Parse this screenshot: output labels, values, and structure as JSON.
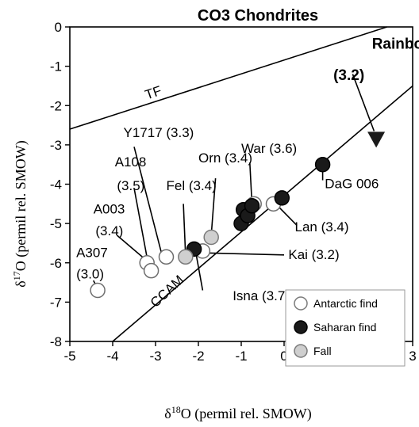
{
  "chart_data": {
    "type": "scatter",
    "title": "CO3 Chondrites",
    "xlabel": {
      "symbol": "δ",
      "sup": "18",
      "rest": "O (permil rel. SMOW)"
    },
    "ylabel": {
      "symbol": "δ",
      "sup": "17",
      "rest": "O (permil rel. SMOW)"
    },
    "xlim": [
      -5,
      3
    ],
    "ylim": [
      -8,
      0
    ],
    "xticks": [
      "-5",
      "-4",
      "-3",
      "-2",
      "-1",
      "0",
      "1",
      "2",
      "3"
    ],
    "yticks": [
      "0",
      "-1",
      "-2",
      "-3",
      "-4",
      "-5",
      "-6",
      "-7",
      "-8"
    ],
    "grid": false,
    "legend_position": "bottom-right",
    "colors": {
      "antarctic": "#ffffff",
      "saharan": "#1a1a1a",
      "fall": "#cfcfcf",
      "rainbow": "#1a1a1a",
      "line": "#000000"
    },
    "lines": [
      {
        "name": "TF",
        "x": [
          -5.0,
          2.4
        ],
        "y": [
          -2.6,
          0.0
        ]
      },
      {
        "name": "CCAM",
        "x": [
          -4.0,
          3.0
        ],
        "y": [
          -8.0,
          -1.5
        ]
      }
    ],
    "legend": [
      {
        "label": "Antarctic find",
        "key": "antarctic"
      },
      {
        "label": "Saharan find",
        "key": "saharan"
      },
      {
        "label": "Fall",
        "key": "fall"
      }
    ],
    "series": [
      {
        "name": "Antarctic find",
        "points": [
          {
            "x": -4.35,
            "y": -6.7
          },
          {
            "x": -3.2,
            "y": -6.0
          },
          {
            "x": -3.1,
            "y": -6.2
          },
          {
            "x": -2.75,
            "y": -5.85
          },
          {
            "x": -1.9,
            "y": -5.7
          },
          {
            "x": -0.7,
            "y": -4.5
          },
          {
            "x": -0.25,
            "y": -4.5
          }
        ]
      },
      {
        "name": "Saharan find",
        "points": [
          {
            "x": -2.1,
            "y": -5.65
          },
          {
            "x": -1.0,
            "y": -5.0
          },
          {
            "x": -0.95,
            "y": -4.65
          },
          {
            "x": -0.85,
            "y": -4.8
          },
          {
            "x": -0.75,
            "y": -4.55
          },
          {
            "x": -0.05,
            "y": -4.35
          },
          {
            "x": 0.9,
            "y": -3.5
          }
        ]
      },
      {
        "name": "Fall",
        "points": [
          {
            "x": -2.3,
            "y": -5.85
          },
          {
            "x": -1.7,
            "y": -5.35
          }
        ]
      },
      {
        "name": "Rainbow",
        "points": [
          {
            "x": 2.15,
            "y": -2.85
          }
        ]
      }
    ],
    "annotations": [
      {
        "text": "TF",
        "x": -3.2,
        "y": -1.85,
        "rotate": -19,
        "pointer": null
      },
      {
        "text": "CCAM",
        "x": -3.0,
        "y": -7.15,
        "rotate": -43,
        "pointer": null
      },
      {
        "text": "Rainbow",
        "x": 2.05,
        "y": -0.55,
        "bold": true,
        "pointer": null
      },
      {
        "text": "(3.2)",
        "x": 1.15,
        "y": -1.35,
        "bold": true,
        "pointer": {
          "from": [
            1.6,
            -1.2
          ],
          "to": [
            2.1,
            -2.65
          ]
        }
      },
      {
        "text": "War (3.6)",
        "x": -1.0,
        "y": -3.2,
        "pointer": {
          "from": [
            -0.8,
            -3.45
          ],
          "to": [
            -0.75,
            -4.5
          ]
        }
      },
      {
        "text": "Y1717 (3.3)",
        "x": -3.75,
        "y": -2.8,
        "pointer": {
          "from": [
            -3.5,
            -3.05
          ],
          "to": [
            -2.85,
            -5.8
          ]
        }
      },
      {
        "text": "Orn (3.4)",
        "x": -2.0,
        "y": -3.45,
        "pointer": {
          "from": [
            -1.6,
            -3.85
          ],
          "to": [
            -1.7,
            -5.3
          ]
        }
      },
      {
        "text": "Fel (3.4)",
        "x": -2.75,
        "y": -4.15,
        "pointer": {
          "from": [
            -2.35,
            -4.5
          ],
          "to": [
            -2.3,
            -5.8
          ]
        }
      },
      {
        "text": "A108",
        "x": -3.95,
        "y": -3.55
      },
      {
        "text": "(3.5)",
        "x": -3.9,
        "y": -4.15,
        "pointer": {
          "from": [
            -3.5,
            -4.1
          ],
          "to": [
            -3.15,
            -6.15
          ]
        }
      },
      {
        "text": "A003",
        "x": -4.45,
        "y": -4.75
      },
      {
        "text": "(3.4)",
        "x": -4.4,
        "y": -5.3,
        "pointer": {
          "from": [
            -3.9,
            -5.3
          ],
          "to": [
            -3.2,
            -5.95
          ]
        }
      },
      {
        "text": "A307",
        "x": -4.85,
        "y": -5.85
      },
      {
        "text": "(3.0)",
        "x": -4.85,
        "y": -6.4,
        "pointer": {
          "from": [
            -4.45,
            -6.45
          ],
          "to": [
            -4.35,
            -6.65
          ]
        }
      },
      {
        "text": "DaG 006",
        "x": 0.95,
        "y": -4.1,
        "pointer": {
          "from": [
            0.9,
            -3.6
          ],
          "to": [
            0.9,
            -3.9
          ]
        }
      },
      {
        "text": "Lan (3.4)",
        "x": 0.25,
        "y": -5.2,
        "pointer": {
          "from": [
            -0.15,
            -4.55
          ],
          "to": [
            0.3,
            -5.05
          ]
        }
      },
      {
        "text": "Kai (3.2)",
        "x": 0.1,
        "y": -5.9,
        "pointer": {
          "from": [
            -1.8,
            -5.75
          ],
          "to": [
            0.0,
            -5.8
          ]
        }
      },
      {
        "text": "Isna (3.7)",
        "x": -1.2,
        "y": -6.95,
        "pointer": {
          "from": [
            -2.05,
            -5.8
          ],
          "to": [
            -1.9,
            -6.7
          ]
        }
      }
    ]
  }
}
